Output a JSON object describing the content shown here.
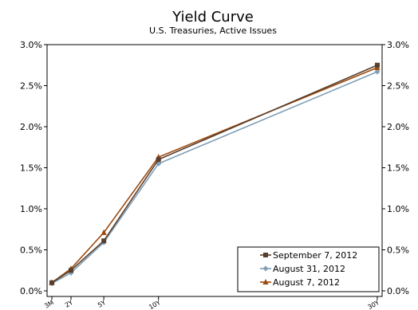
{
  "chart_data": {
    "type": "line",
    "title": "Yield Curve",
    "subtitle": "U.S. Treasuries, Active Issues",
    "xlabel": "",
    "ylabel": "",
    "categories": [
      "3M",
      "2Y",
      "5Y",
      "10Y",
      "30Y"
    ],
    "x_years": [
      0.25,
      2,
      5,
      10,
      30
    ],
    "ylim": [
      0,
      3.0
    ],
    "y_ticks": [
      "0.0%",
      "0.5%",
      "1.0%",
      "1.5%",
      "2.0%",
      "2.5%",
      "3.0%"
    ],
    "grid": false,
    "legend_position": "bottom-right",
    "series": [
      {
        "name": "September 7, 2012",
        "values": [
          0.1,
          0.25,
          0.61,
          1.6,
          2.75
        ],
        "color": "#5a3e2b",
        "marker": "square"
      },
      {
        "name": "August 31, 2012",
        "values": [
          0.09,
          0.22,
          0.59,
          1.55,
          2.67
        ],
        "color": "#7f9fb6",
        "marker": "diamond"
      },
      {
        "name": "August 7, 2012",
        "values": [
          0.1,
          0.27,
          0.71,
          1.63,
          2.72
        ],
        "color": "#9c4a0e",
        "marker": "triangle"
      }
    ]
  }
}
